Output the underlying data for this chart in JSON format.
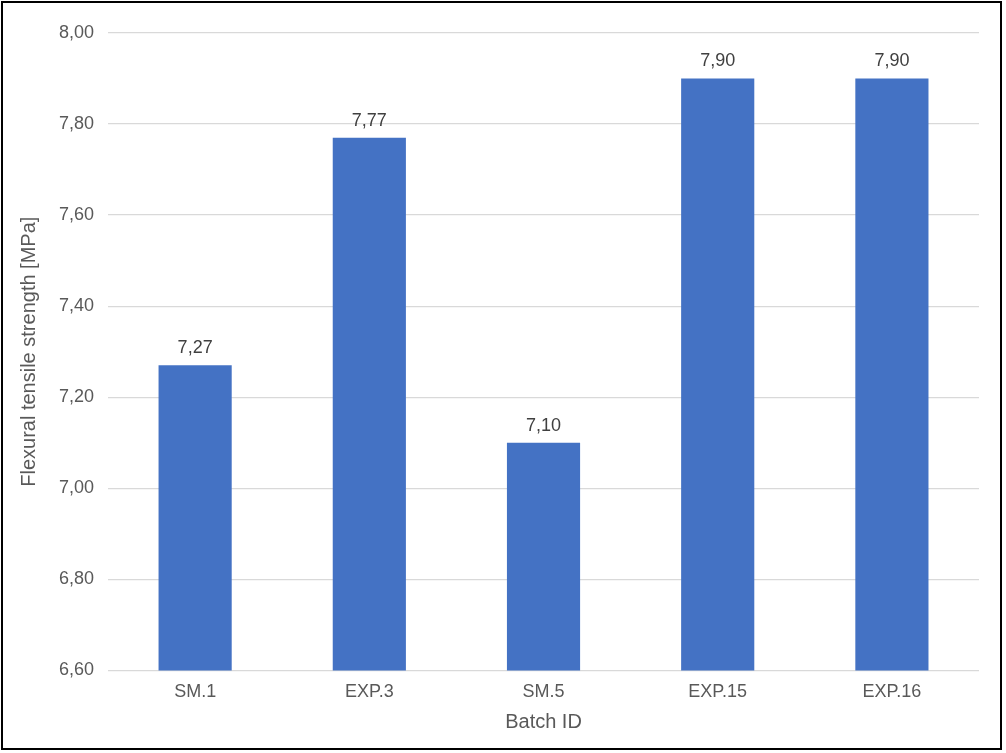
{
  "chart_data": {
    "type": "bar",
    "xlabel": "Batch ID",
    "ylabel": "Flexural tensile strength [MPa]",
    "categories": [
      "SM.1",
      "EXP.3",
      "SM.5",
      "EXP.15",
      "EXP.16"
    ],
    "values": [
      7.27,
      7.77,
      7.1,
      7.9,
      7.9
    ],
    "value_labels": [
      "7,27",
      "7,77",
      "7,10",
      "7,90",
      "7,90"
    ],
    "color": "#4472c4",
    "ylim": [
      6.6,
      8.0
    ],
    "yticks": [
      {
        "value": 6.6,
        "label": "6,60"
      },
      {
        "value": 6.8,
        "label": "6,80"
      },
      {
        "value": 7.0,
        "label": "7,00"
      },
      {
        "value": 7.2,
        "label": "7,20"
      },
      {
        "value": 7.4,
        "label": "7,40"
      },
      {
        "value": 7.6,
        "label": "7,60"
      },
      {
        "value": 7.8,
        "label": "7,80"
      },
      {
        "value": 8.0,
        "label": "8,00"
      }
    ],
    "grid": "y",
    "legend": false
  }
}
